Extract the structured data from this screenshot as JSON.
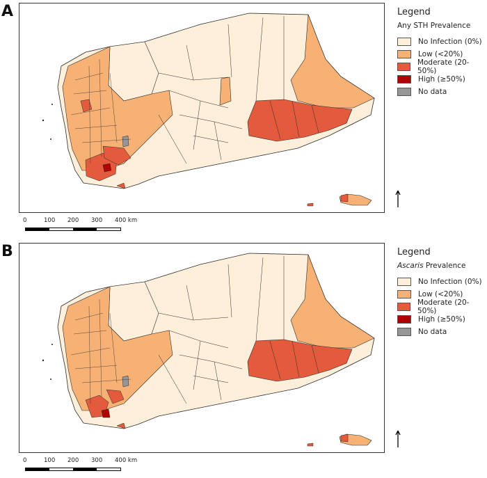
{
  "colors": {
    "none": "#fdefd9",
    "low": "#f7b174",
    "moderate": "#e45a3c",
    "high": "#b20000",
    "nodata": "#969696",
    "border": "#2b2b2b"
  },
  "panels": [
    {
      "letter": "A",
      "legend": {
        "title": "Legend",
        "subtitle_italic": "",
        "subtitle_text": "Any STH Prevalence",
        "items": [
          {
            "label": "No Infection (0%)",
            "color_key": "none"
          },
          {
            "label": "Low (<20%)",
            "color_key": "low"
          },
          {
            "label": "Moderate (20-50%)",
            "color_key": "moderate"
          },
          {
            "label": "High (≥50%)",
            "color_key": "high"
          },
          {
            "label": "No data",
            "color_key": "nodata"
          }
        ]
      },
      "scale": {
        "labels": [
          "0",
          "100",
          "200",
          "300",
          "400 km"
        ]
      }
    },
    {
      "letter": "B",
      "legend": {
        "title": "Legend",
        "subtitle_italic": "Ascaris",
        "subtitle_text": " Prevalence",
        "items": [
          {
            "label": "No Infection (0%)",
            "color_key": "none"
          },
          {
            "label": "Low (<20%)",
            "color_key": "low"
          },
          {
            "label": "Moderate (20-50%)",
            "color_key": "moderate"
          },
          {
            "label": "High (≥50%)",
            "color_key": "high"
          },
          {
            "label": "No data",
            "color_key": "nodata"
          }
        ]
      },
      "scale": {
        "labels": [
          "0",
          "100",
          "200",
          "300",
          "400 km"
        ]
      }
    }
  ]
}
